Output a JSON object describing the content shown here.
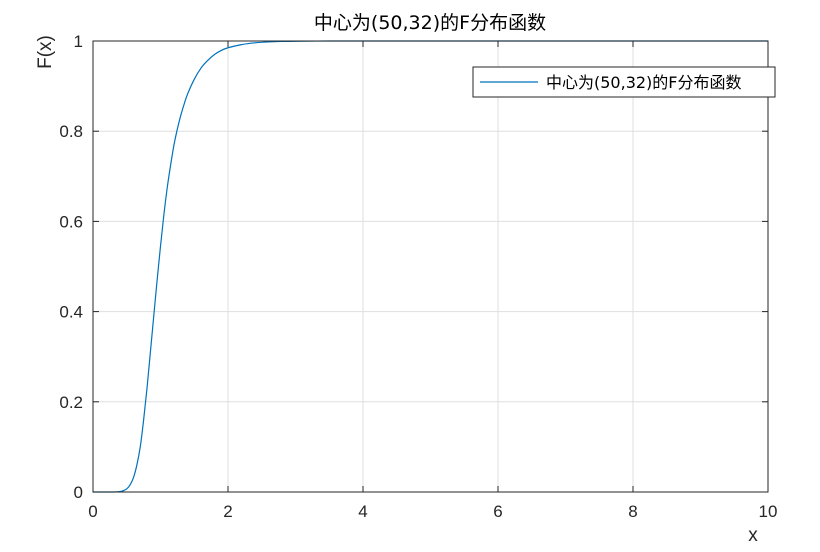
{
  "chart_data": {
    "type": "line",
    "title": "中心为(50,32)的F分布函数",
    "xlabel": "x",
    "ylabel": "F(x)",
    "xlim": [
      0,
      10
    ],
    "ylim": [
      0,
      1
    ],
    "xticks": [
      0,
      2,
      4,
      6,
      8,
      10
    ],
    "xtick_labels": [
      "0",
      "2",
      "4",
      "6",
      "8",
      "10"
    ],
    "yticks": [
      0,
      0.2,
      0.4,
      0.6,
      0.8,
      1
    ],
    "ytick_labels": [
      "0",
      "0.2",
      "0.4",
      "0.6",
      "0.8",
      "1"
    ],
    "grid": true,
    "legend_position": "top-right",
    "series": [
      {
        "name": "中心为(50,32)的F分布函数",
        "color": "#0072BD",
        "x": [
          0,
          0.3,
          0.4,
          0.45,
          0.5,
          0.55,
          0.6,
          0.65,
          0.7,
          0.75,
          0.8,
          0.85,
          0.9,
          0.95,
          1.0,
          1.05,
          1.1,
          1.15,
          1.2,
          1.25,
          1.3,
          1.35,
          1.4,
          1.5,
          1.6,
          1.7,
          1.8,
          1.9,
          2.0,
          2.2,
          2.4,
          2.6,
          2.8,
          3.0,
          3.5,
          4.0,
          6.0,
          8.0,
          10.0
        ],
        "y": [
          0,
          0,
          0.001,
          0.003,
          0.007,
          0.016,
          0.032,
          0.06,
          0.1,
          0.16,
          0.23,
          0.31,
          0.39,
          0.47,
          0.545,
          0.615,
          0.675,
          0.725,
          0.77,
          0.805,
          0.835,
          0.86,
          0.882,
          0.915,
          0.94,
          0.957,
          0.97,
          0.979,
          0.985,
          0.992,
          0.996,
          0.998,
          0.999,
          0.9995,
          1.0,
          1.0,
          1.0,
          1.0,
          1.0
        ]
      }
    ]
  }
}
